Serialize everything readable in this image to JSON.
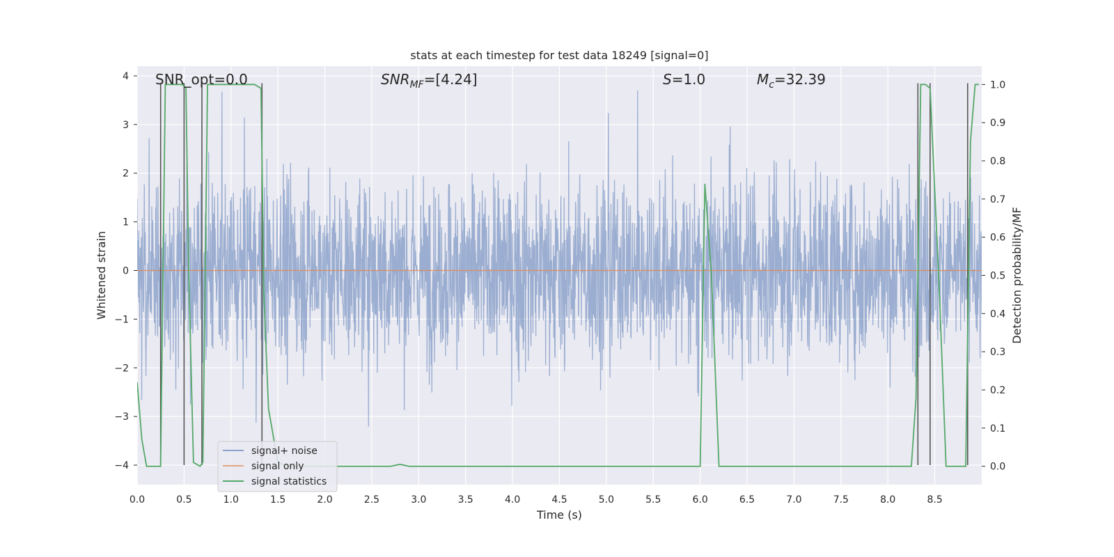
{
  "chart_data": {
    "type": "line",
    "title": "stats at each timestep for test data 18249 [signal=0]",
    "xlabel": "Time (s)",
    "ylabel": "Whitened strain",
    "ylabel_right": "Detection probability/MF",
    "xlim": [
      0.0,
      9.0
    ],
    "ylim": [
      -4.4,
      4.2
    ],
    "ylim_right": [
      -0.048,
      1.048
    ],
    "x_ticks": [
      0.0,
      0.5,
      1.0,
      1.5,
      2.0,
      2.5,
      3.0,
      3.5,
      4.0,
      4.5,
      5.0,
      5.5,
      6.0,
      6.5,
      7.0,
      7.5,
      8.0,
      8.5
    ],
    "x_tick_labels": [
      "0.0",
      "0.5",
      "1.0",
      "1.5",
      "2.0",
      "2.5",
      "3.0",
      "3.5",
      "4.0",
      "4.5",
      "5.0",
      "5.5",
      "6.0",
      "6.5",
      "7.0",
      "7.5",
      "8.0",
      "8.5"
    ],
    "y_ticks": [
      4,
      3,
      2,
      1,
      0,
      -1,
      -2,
      -3,
      -4
    ],
    "y_tick_labels": [
      "4",
      "3",
      "2",
      "1",
      "0",
      "−1",
      "−2",
      "−3",
      "−4"
    ],
    "y_right_ticks": [
      1.0,
      0.9,
      0.8,
      0.7,
      0.6,
      0.5,
      0.4,
      0.3,
      0.2,
      0.1,
      0.0
    ],
    "y_right_tick_labels": [
      "1.0",
      "0.9",
      "0.8",
      "0.7",
      "0.6",
      "0.5",
      "0.4",
      "0.3",
      "0.2",
      "0.1",
      "0.0"
    ],
    "annotations": {
      "snr_opt": "SNR_opt=0.0",
      "snr_mf_label": "SNR",
      "snr_mf_sub": "MF",
      "snr_mf_value": "=[4.24]",
      "s_label": "S",
      "s_value": "=1.0",
      "mc_label": "M",
      "mc_sub": "c",
      "mc_value": "=32.39"
    },
    "legend": {
      "placement": "lower-left",
      "entries": [
        "signal+ noise",
        "signal only",
        "signal statistics"
      ]
    },
    "colors": {
      "noise": "#4c72b0",
      "signal": "#dd8452",
      "statistics": "#55a868",
      "vlines": "#555555",
      "background": "#eaeaf2"
    },
    "series": [
      {
        "name": "signal+ noise",
        "kind": "noise",
        "duration_s": 9.0,
        "typical_envelope": 2.5,
        "peak_max": 3.9,
        "trough_min": -3.6
      },
      {
        "name": "signal only",
        "kind": "flat",
        "value": 0.0
      },
      {
        "name": "signal statistics",
        "axis": "right",
        "x": [
          0.0,
          0.05,
          0.1,
          0.2,
          0.25,
          0.3,
          0.48,
          0.52,
          0.55,
          0.6,
          0.67,
          0.7,
          0.75,
          1.25,
          1.32,
          1.35,
          1.4,
          1.5,
          1.6,
          2.0,
          2.5,
          2.7,
          2.8,
          2.9,
          3.0,
          4.0,
          5.0,
          5.6,
          5.95,
          6.0,
          6.05,
          6.12,
          6.2,
          7.0,
          8.0,
          8.25,
          8.3,
          8.35,
          8.4,
          8.45,
          8.55,
          8.62,
          8.7,
          8.75,
          8.83,
          8.88,
          8.93,
          8.97
        ],
        "y": [
          0.22,
          0.07,
          0.0,
          0.0,
          0.0,
          1.0,
          1.0,
          0.99,
          0.5,
          0.01,
          0.0,
          0.01,
          1.0,
          1.0,
          0.99,
          0.45,
          0.15,
          0.01,
          0.0,
          0.0,
          0.0,
          0.0,
          0.005,
          0.0,
          0.0,
          0.0,
          0.0,
          0.0,
          0.0,
          0.0,
          0.74,
          0.5,
          0.0,
          0.0,
          0.0,
          0.0,
          0.18,
          1.0,
          1.0,
          0.99,
          0.45,
          0.0,
          0.0,
          0.0,
          0.0,
          0.85,
          1.0,
          1.0
        ]
      }
    ],
    "vertical_lines_x": [
      0.25,
      0.5,
      0.69,
      1.33,
      8.32,
      8.45,
      8.85
    ]
  }
}
